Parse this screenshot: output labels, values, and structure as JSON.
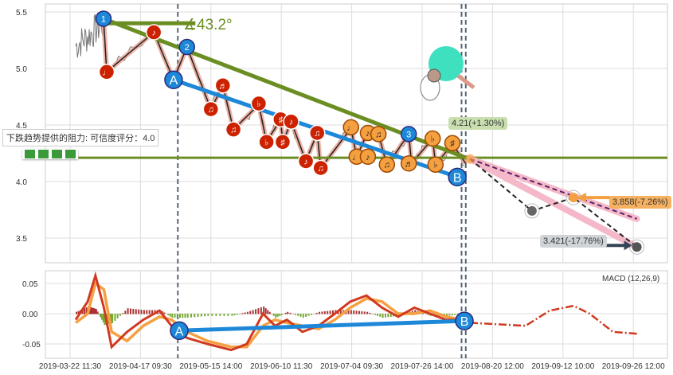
{
  "chart_data": {
    "type": "line",
    "title": "",
    "x_tick_labels": [
      "2019-03-22 11:30",
      "2019-04-17 09:30",
      "2019-05-15 14:00",
      "2019-06-10 11:30",
      "2019-07-04 09:30",
      "2019-07-26 14:00",
      "2019-08-20 12:00",
      "2019-09-12 10:00",
      "2019-09-26 12:00"
    ],
    "x_unit": "tick index",
    "price_axis": {
      "ticks": [
        5.5,
        5.0,
        4.5,
        4.0,
        3.5
      ],
      "ylim": [
        3.3,
        5.6
      ]
    },
    "macd_axis": {
      "ticks": [
        0.05,
        0.0,
        -0.05
      ],
      "ylim": [
        -0.07,
        0.07
      ]
    },
    "zigzag": [
      [
        0.475,
        5.44
      ],
      [
        0.52,
        4.97
      ],
      [
        1.19,
        5.32
      ],
      [
        1.47,
        4.9
      ],
      [
        1.66,
        5.19
      ],
      [
        2.0,
        4.64
      ],
      [
        2.17,
        4.85
      ],
      [
        2.32,
        4.46
      ],
      [
        2.68,
        4.68
      ],
      [
        2.79,
        4.35
      ],
      [
        2.99,
        4.55
      ],
      [
        3.02,
        4.35
      ],
      [
        3.14,
        4.53
      ],
      [
        3.35,
        4.18
      ],
      [
        3.51,
        4.43
      ],
      [
        3.56,
        4.12
      ],
      [
        3.99,
        4.47
      ],
      [
        4.07,
        4.22
      ],
      [
        4.23,
        4.44
      ],
      [
        4.38,
        4.42
      ],
      [
        4.5,
        4.14
      ],
      [
        4.81,
        4.42
      ],
      [
        4.85,
        4.16
      ],
      [
        5.15,
        4.38
      ],
      [
        5.19,
        4.15
      ],
      [
        5.43,
        4.33
      ],
      [
        5.62,
        4.16
      ]
    ],
    "notes": [
      {
        "x": 0.52,
        "y": 4.97,
        "g": "♩",
        "c": "red"
      },
      {
        "x": 1.19,
        "y": 5.32,
        "g": "♪",
        "c": "red"
      },
      {
        "x": 2.17,
        "y": 4.85,
        "g": "♬",
        "c": "red"
      },
      {
        "x": 2.0,
        "y": 4.64,
        "g": "♫",
        "c": "red"
      },
      {
        "x": 2.32,
        "y": 4.46,
        "g": "♫",
        "c": "red"
      },
      {
        "x": 2.68,
        "y": 4.69,
        "g": "♭",
        "c": "red"
      },
      {
        "x": 2.79,
        "y": 4.35,
        "g": "♭",
        "c": "red"
      },
      {
        "x": 2.99,
        "y": 4.55,
        "g": "♯",
        "c": "red"
      },
      {
        "x": 3.02,
        "y": 4.35,
        "g": "♯",
        "c": "red"
      },
      {
        "x": 3.14,
        "y": 4.53,
        "g": "♪",
        "c": "red"
      },
      {
        "x": 3.51,
        "y": 4.43,
        "g": "♫",
        "c": "red"
      },
      {
        "x": 3.35,
        "y": 4.18,
        "g": "♪",
        "c": "red"
      },
      {
        "x": 3.56,
        "y": 4.12,
        "g": "♫",
        "c": "red"
      },
      {
        "x": 3.99,
        "y": 4.48,
        "g": "♩",
        "c": "orange"
      },
      {
        "x": 4.23,
        "y": 4.43,
        "g": "♪",
        "c": "orange"
      },
      {
        "x": 4.38,
        "y": 4.42,
        "g": "♫",
        "c": "orange"
      },
      {
        "x": 4.07,
        "y": 4.22,
        "g": "♩",
        "c": "orange"
      },
      {
        "x": 4.23,
        "y": 4.22,
        "g": "♪",
        "c": "orange"
      },
      {
        "x": 4.5,
        "y": 4.15,
        "g": "♫",
        "c": "orange"
      },
      {
        "x": 4.81,
        "y": 4.16,
        "g": "♬",
        "c": "orange"
      },
      {
        "x": 5.15,
        "y": 4.38,
        "g": "♭",
        "c": "orange"
      },
      {
        "x": 5.19,
        "y": 4.15,
        "g": "♭",
        "c": "orange"
      },
      {
        "x": 5.43,
        "y": 4.34,
        "g": "♯",
        "c": "orange"
      }
    ],
    "wave_labels": [
      {
        "x": 0.475,
        "y": 5.44,
        "t": "1"
      },
      {
        "x": 1.66,
        "y": 5.19,
        "t": "2"
      },
      {
        "x": 4.81,
        "y": 4.42,
        "t": "3"
      },
      {
        "x": 1.47,
        "y": 4.9,
        "t": "A"
      },
      {
        "x": 5.5,
        "y": 4.04,
        "t": "B"
      }
    ],
    "trend_green": [
      [
        0.475,
        5.44
      ],
      [
        5.75,
        4.18
      ]
    ],
    "trend_blue": [
      [
        1.47,
        4.9
      ],
      [
        5.5,
        4.04
      ]
    ],
    "angle_line": [
      [
        0.475,
        5.4
      ],
      [
        1.78,
        5.4
      ]
    ],
    "angle_label": "∡43.2°",
    "support_level": 4.21,
    "support_label": "4.21(+1.30%)",
    "projection_main": [
      [
        5.68,
        4.2
      ],
      [
        6.56,
        3.74
      ],
      [
        7.15,
        3.858
      ],
      [
        8.05,
        3.421
      ]
    ],
    "projection_alt": [
      [
        5.68,
        4.2
      ],
      [
        8.05,
        3.67
      ]
    ],
    "target1_label": "3.858(-7.26%)",
    "target2_label": "3.421(-17.76%)",
    "vlines": [
      1.53,
      5.56,
      5.62
    ],
    "resistance_text": "下跌趋势提供的阻力: 可信度评分：4.0",
    "macd_label": "MACD (12,26,9)",
    "macd_x": [
      0.08,
      0.25,
      0.36,
      0.48,
      0.59,
      0.81,
      1.04,
      1.27,
      1.44,
      1.66,
      1.95,
      2.29,
      2.51,
      2.74,
      2.91,
      3.08,
      3.3,
      3.53,
      3.76,
      3.98,
      4.21,
      4.43,
      4.66,
      4.89,
      5.11,
      5.34,
      5.57
    ],
    "macd": [
      -0.01,
      0.02,
      0.063,
      0.01,
      -0.055,
      -0.03,
      -0.01,
      0.005,
      -0.02,
      -0.04,
      -0.05,
      -0.06,
      -0.05,
      0.0,
      -0.02,
      -0.01,
      -0.03,
      -0.02,
      0.0,
      0.02,
      0.03,
      0.01,
      -0.005,
      0.01,
      0.0,
      -0.01,
      -0.01
    ],
    "signal": [
      -0.015,
      0.0,
      0.05,
      0.04,
      -0.03,
      -0.045,
      -0.02,
      -0.005,
      -0.01,
      -0.03,
      -0.045,
      -0.055,
      -0.055,
      -0.02,
      -0.01,
      -0.015,
      -0.02,
      -0.025,
      -0.01,
      0.01,
      0.025,
      0.02,
      0.0,
      0.0,
      0.005,
      -0.005,
      -0.01
    ],
    "macd_proj_x": [
      5.68,
      6.47,
      6.81,
      7.15,
      7.38,
      7.71,
      8.05
    ],
    "macd_proj": [
      -0.015,
      -0.02,
      0.005,
      0.013,
      0.0,
      -0.03,
      -0.033
    ],
    "macd_trend": [
      [
        1.55,
        -0.028
      ],
      [
        5.6,
        -0.012
      ]
    ],
    "colors": {
      "green": "#6b8e23",
      "blue": "#1e88d8",
      "red": "#cc2200",
      "orange": "#f5a040",
      "pink": "#f4b8c8"
    }
  }
}
